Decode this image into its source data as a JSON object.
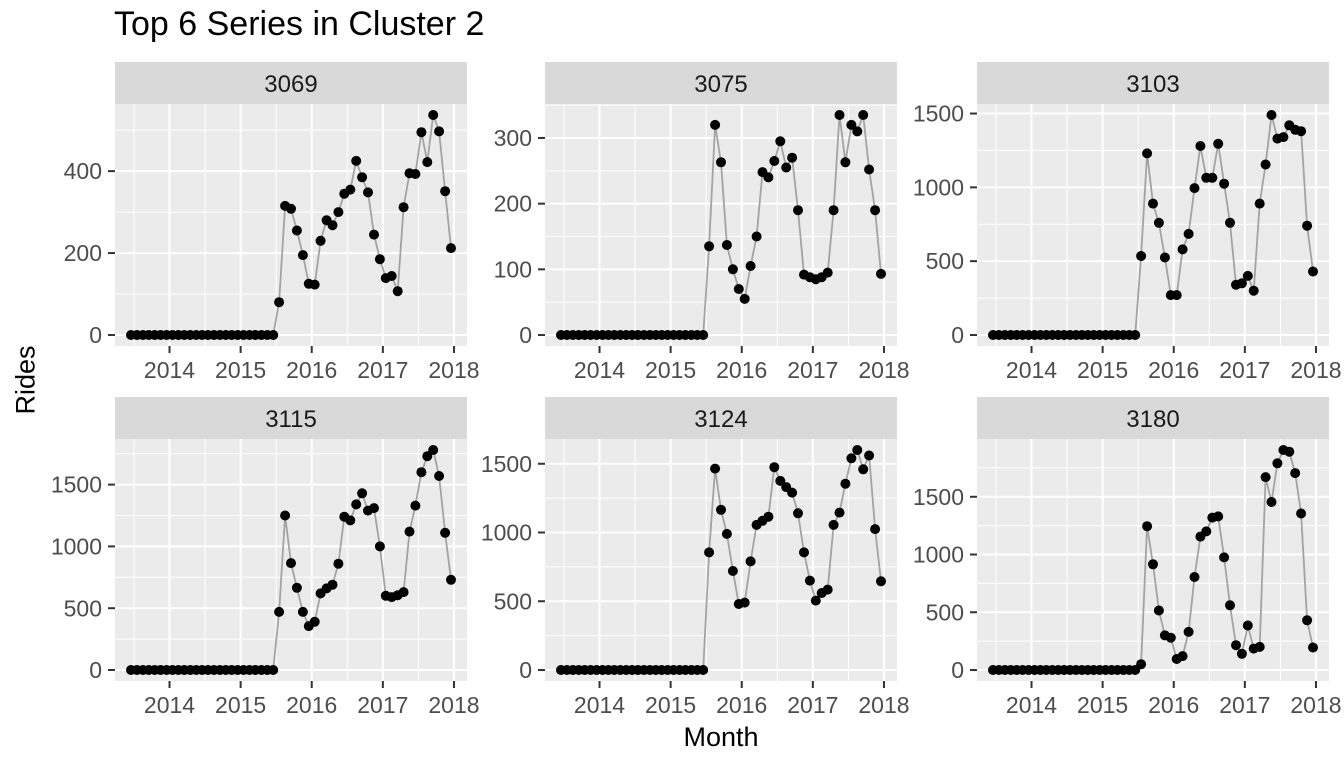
{
  "chart_data": {
    "type": "scatter",
    "subtype": "line-and-points-faceted",
    "title": "Top 6 Series in Cluster 2",
    "xlabel": "Month",
    "ylabel": "Rides",
    "x_monthly_start": "2013-06",
    "x_monthly_end": "2017-12",
    "x_ticks": [
      2014,
      2015,
      2016,
      2017,
      2018
    ],
    "grid": true,
    "legend_position": "none",
    "facets": [
      {
        "label": "3069",
        "y_ticks": [
          0,
          200,
          400
        ],
        "values": [
          0,
          0,
          0,
          0,
          0,
          0,
          0,
          0,
          0,
          0,
          0,
          0,
          0,
          0,
          0,
          0,
          0,
          0,
          0,
          0,
          0,
          0,
          0,
          0,
          0,
          80,
          315,
          308,
          255,
          195,
          125,
          123,
          230,
          280,
          268,
          300,
          345,
          355,
          425,
          385,
          348,
          245,
          185,
          139,
          144,
          107,
          312,
          395,
          393,
          495,
          422,
          537,
          497,
          351,
          212
        ]
      },
      {
        "label": "3075",
        "y_ticks": [
          0,
          100,
          200,
          300
        ],
        "values": [
          0,
          0,
          0,
          0,
          0,
          0,
          0,
          0,
          0,
          0,
          0,
          0,
          0,
          0,
          0,
          0,
          0,
          0,
          0,
          0,
          0,
          0,
          0,
          0,
          0,
          135,
          320,
          263,
          137,
          100,
          70,
          55,
          105,
          150,
          248,
          240,
          265,
          295,
          255,
          270,
          190,
          92,
          88,
          85,
          88,
          95,
          190,
          335,
          263,
          320,
          310,
          335,
          252,
          190,
          93
        ]
      },
      {
        "label": "3103",
        "y_ticks": [
          0,
          500,
          1000,
          1500
        ],
        "values": [
          0,
          0,
          0,
          0,
          0,
          0,
          0,
          0,
          0,
          0,
          0,
          0,
          0,
          0,
          0,
          0,
          0,
          0,
          0,
          0,
          0,
          0,
          0,
          0,
          0,
          535,
          1230,
          890,
          760,
          525,
          270,
          270,
          580,
          685,
          995,
          1280,
          1065,
          1065,
          1295,
          1025,
          760,
          340,
          350,
          400,
          300,
          890,
          1155,
          1490,
          1330,
          1340,
          1420,
          1390,
          1380,
          740,
          430
        ]
      },
      {
        "label": "3115",
        "y_ticks": [
          0,
          500,
          1000,
          1500
        ],
        "values": [
          0,
          0,
          0,
          0,
          0,
          0,
          0,
          0,
          0,
          0,
          0,
          0,
          0,
          0,
          0,
          0,
          0,
          0,
          0,
          0,
          0,
          0,
          0,
          0,
          0,
          470,
          1250,
          865,
          665,
          470,
          355,
          390,
          620,
          660,
          690,
          860,
          1240,
          1210,
          1340,
          1430,
          1290,
          1310,
          1000,
          600,
          590,
          605,
          630,
          1120,
          1330,
          1600,
          1730,
          1780,
          1570,
          1110,
          730
        ]
      },
      {
        "label": "3124",
        "y_ticks": [
          0,
          500,
          1000,
          1500
        ],
        "values": [
          0,
          0,
          0,
          0,
          0,
          0,
          0,
          0,
          0,
          0,
          0,
          0,
          0,
          0,
          0,
          0,
          0,
          0,
          0,
          0,
          0,
          0,
          0,
          0,
          0,
          855,
          1465,
          1165,
          990,
          720,
          480,
          490,
          790,
          1055,
          1085,
          1115,
          1475,
          1375,
          1330,
          1290,
          1140,
          855,
          650,
          505,
          560,
          585,
          1055,
          1145,
          1355,
          1540,
          1600,
          1460,
          1560,
          1025,
          645
        ]
      },
      {
        "label": "3180",
        "y_ticks": [
          0,
          500,
          1000,
          1500
        ],
        "values": [
          0,
          0,
          0,
          0,
          0,
          0,
          0,
          0,
          0,
          0,
          0,
          0,
          0,
          0,
          0,
          0,
          0,
          0,
          0,
          0,
          0,
          0,
          0,
          0,
          0,
          50,
          1245,
          915,
          515,
          300,
          280,
          95,
          120,
          330,
          805,
          1155,
          1200,
          1320,
          1330,
          975,
          560,
          215,
          140,
          385,
          185,
          200,
          1670,
          1455,
          1790,
          1905,
          1890,
          1705,
          1355,
          430,
          195
        ]
      }
    ],
    "style": {
      "panel_background": "#EBEBEB",
      "strip_background": "#D9D9D9",
      "grid_color": "#FFFFFF",
      "line_color": "#A3A3A3",
      "point_color": "#000000",
      "tick_mark_color": "#333333",
      "tick_label_color": "#4D4D4D",
      "strip_text_color": "#1A1A1A",
      "title_color": "#000000"
    }
  }
}
